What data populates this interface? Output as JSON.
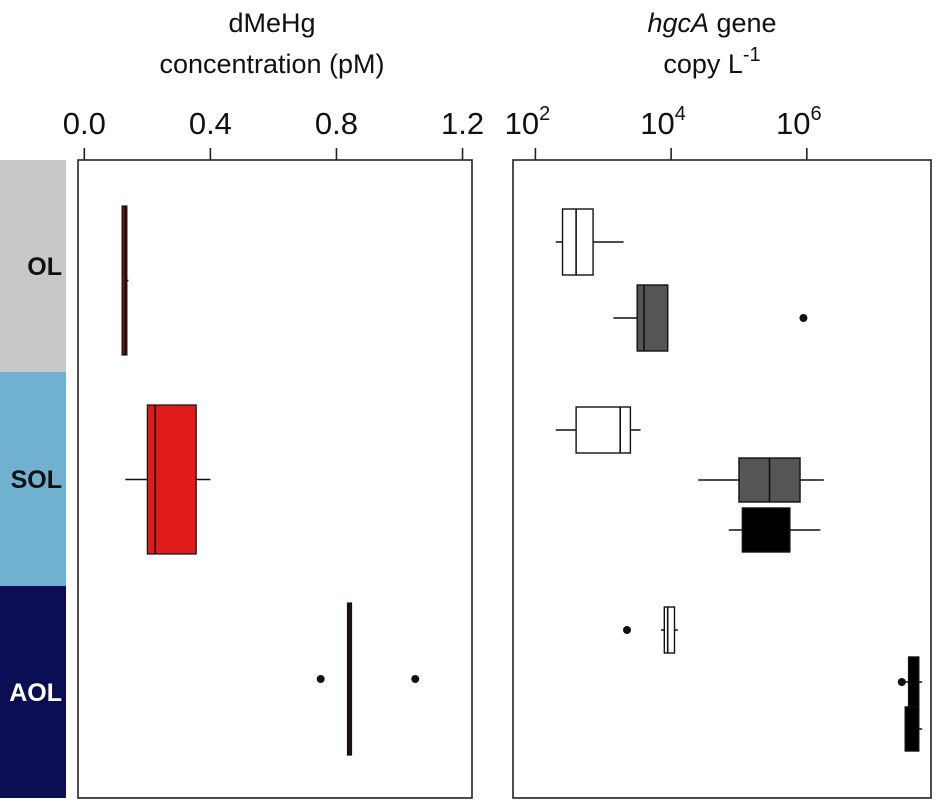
{
  "chart_data": [
    {
      "type": "boxplot",
      "title_line1": "dMeHg",
      "title_line2": "concentration (pM)",
      "x_ticks": [
        "0.0",
        "0.4",
        "0.8",
        "1.2"
      ],
      "x_tick_values": [
        0.0,
        0.4,
        0.8,
        1.2
      ],
      "xlim": [
        -0.02,
        1.23
      ],
      "groups": [
        "OL",
        "SOL",
        "AOL"
      ],
      "series": [
        {
          "group": "OL",
          "color": "#7a1414",
          "whisker_low": 0.12,
          "q1": 0.12,
          "median": 0.13,
          "q3": 0.135,
          "whisker_high": 0.14,
          "outliers": []
        },
        {
          "group": "SOL",
          "color": "#e01b1b",
          "whisker_low": 0.13,
          "q1": 0.2,
          "median": 0.225,
          "q3": 0.355,
          "whisker_high": 0.4,
          "outliers": []
        },
        {
          "group": "AOL",
          "color": "#3a0d0d",
          "whisker_low": 0.835,
          "q1": 0.835,
          "median": 0.84,
          "q3": 0.845,
          "whisker_high": 0.845,
          "outliers": [
            0.75,
            1.05
          ]
        }
      ]
    },
    {
      "type": "boxplot",
      "title_line1_italic": "hgcA",
      "title_line1_rest": " gene",
      "title_line2": "copy L",
      "title_line2_sup": "-1",
      "x_ticks": [
        {
          "base": "10",
          "exp": "2"
        },
        {
          "base": "10",
          "exp": "4"
        },
        {
          "base": "10",
          "exp": "6"
        }
      ],
      "x_tick_log_values": [
        2,
        4,
        6
      ],
      "x_scale": "log10",
      "xlim_log10": [
        1.67,
        7.83
      ],
      "groups": [
        "OL",
        "SOL",
        "AOL"
      ],
      "series": [
        {
          "group": "OL",
          "fill": "#ffffff",
          "whisker_low": 2.3,
          "q1": 2.4,
          "median": 2.6,
          "q3": 2.85,
          "whisker_high": 3.3,
          "outliers": []
        },
        {
          "group": "OL",
          "fill": "#555555",
          "whisker_low": 3.15,
          "q1": 3.5,
          "median": 3.6,
          "q3": 3.95,
          "whisker_high": 3.95,
          "outliers": [
            5.95
          ]
        },
        {
          "group": "SOL",
          "fill": "#ffffff",
          "whisker_low": 2.3,
          "q1": 2.6,
          "median": 3.25,
          "q3": 3.4,
          "whisker_high": 3.55,
          "outliers": []
        },
        {
          "group": "SOL",
          "fill": "#555555",
          "whisker_low": 4.4,
          "q1": 5.0,
          "median": 5.45,
          "q3": 5.9,
          "whisker_high": 6.25,
          "outliers": []
        },
        {
          "group": "SOL",
          "fill": "#000000",
          "whisker_low": 4.85,
          "q1": 5.05,
          "median": 5.55,
          "q3": 5.75,
          "whisker_high": 6.2,
          "outliers": []
        },
        {
          "group": "AOL",
          "fill": "#ffffff",
          "whisker_low": 3.85,
          "q1": 3.9,
          "median": 3.95,
          "q3": 4.05,
          "whisker_high": 4.1,
          "outliers": [
            3.35
          ]
        },
        {
          "group": "AOL",
          "fill": "#000000",
          "whisker_low": 7.45,
          "q1": 7.5,
          "median": 7.55,
          "q3": 7.65,
          "whisker_high": 7.7,
          "outliers": [
            7.4
          ]
        },
        {
          "group": "AOL",
          "fill": "#000000",
          "whisker_low": 7.45,
          "q1": 7.45,
          "median": 7.6,
          "q3": 7.65,
          "whisker_high": 7.7,
          "outliers": []
        }
      ]
    }
  ],
  "group_bar": [
    {
      "label": "OL",
      "color": "#c8c8c8",
      "text_color": "#111111"
    },
    {
      "label": "SOL",
      "color": "#6fb1cf",
      "text_color": "#111111"
    },
    {
      "label": "AOL",
      "color": "#0b0e52",
      "text_color": "#ffffff"
    }
  ]
}
